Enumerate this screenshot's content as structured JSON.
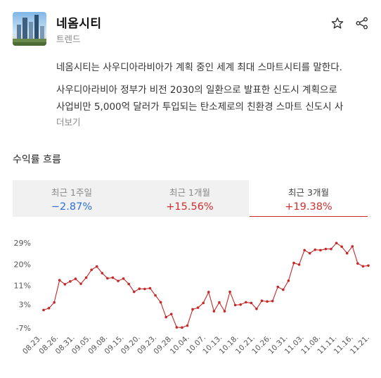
{
  "header": {
    "title": "네옴시티",
    "subtitle": "트렌드",
    "thumbnail_icon": "city-skyline-image",
    "star_icon": "star-outline-icon",
    "share_icon": "share-icon"
  },
  "description": {
    "line1": "네옴시티는 사우디아라비아가 계획 중인 세계 최대 스마트시티를 말한다.",
    "line2": "사우디아라비아 정부가 비전 2030의 일환으로 발표한 신도시 계획으로",
    "line3": "사업비만 5,000억 달러가 투입되는 탄소제로의 친환경 스마트 신도시 사",
    "more_label": "더보기"
  },
  "section": {
    "title": "수익률 흐름"
  },
  "tabs": [
    {
      "label": "최근 1주일",
      "value": "−2.87%",
      "active": false
    },
    {
      "label": "최근 1개월",
      "value": "+15.56%",
      "active": false
    },
    {
      "label": "최근 3개월",
      "value": "+19.38%",
      "active": true
    }
  ],
  "colors": {
    "line": "#c62828",
    "negative": "#2f6fdc",
    "positive": "#d32f2f"
  },
  "chart_data": {
    "type": "line",
    "y_tick_labels": [
      "29%",
      "20%",
      "11%",
      "3%",
      "-7%"
    ],
    "y_tick_values": [
      29,
      20,
      11,
      3,
      -7
    ],
    "ylim": [
      -7,
      29
    ],
    "x_tick_labels": [
      "08.23.",
      "08.26.",
      "08.31.",
      "09.05.",
      "09.08.",
      "09.15.",
      "09.20.",
      "09.23.",
      "09.28.",
      "10.04.",
      "10.07.",
      "10.13.",
      "10.18.",
      "10.21.",
      "10.26.",
      "10.31.",
      "11.03.",
      "11.08.",
      "11.11.",
      "11.16.",
      "11.21."
    ],
    "grid": false,
    "series": [
      {
        "values": [
          0.6,
          1.4,
          3.8,
          13.2,
          11.5,
          12.7,
          13.8,
          11.7,
          14.3,
          17.6,
          19.0,
          16.2,
          14.0,
          14.3,
          12.9,
          13.9,
          11.6,
          8.3,
          9.6,
          9.5,
          9.8,
          6.8,
          3.9,
          -2.4,
          -1.1,
          -6.7,
          -6.8,
          -6.0,
          0.9,
          1.6,
          3.6,
          8.2,
          0.1,
          3.8,
          0.1,
          8.3,
          2.7,
          2.9,
          3.9,
          3.6,
          1.1,
          4.5,
          4.2,
          4.4,
          10.4,
          9.2,
          13.0,
          20.5,
          19.8,
          25.9,
          24.6,
          26.1,
          25.9,
          26.4,
          26.4,
          28.9,
          27.4,
          24.6,
          27.5,
          20.3,
          19.1,
          19.4
        ]
      }
    ]
  }
}
